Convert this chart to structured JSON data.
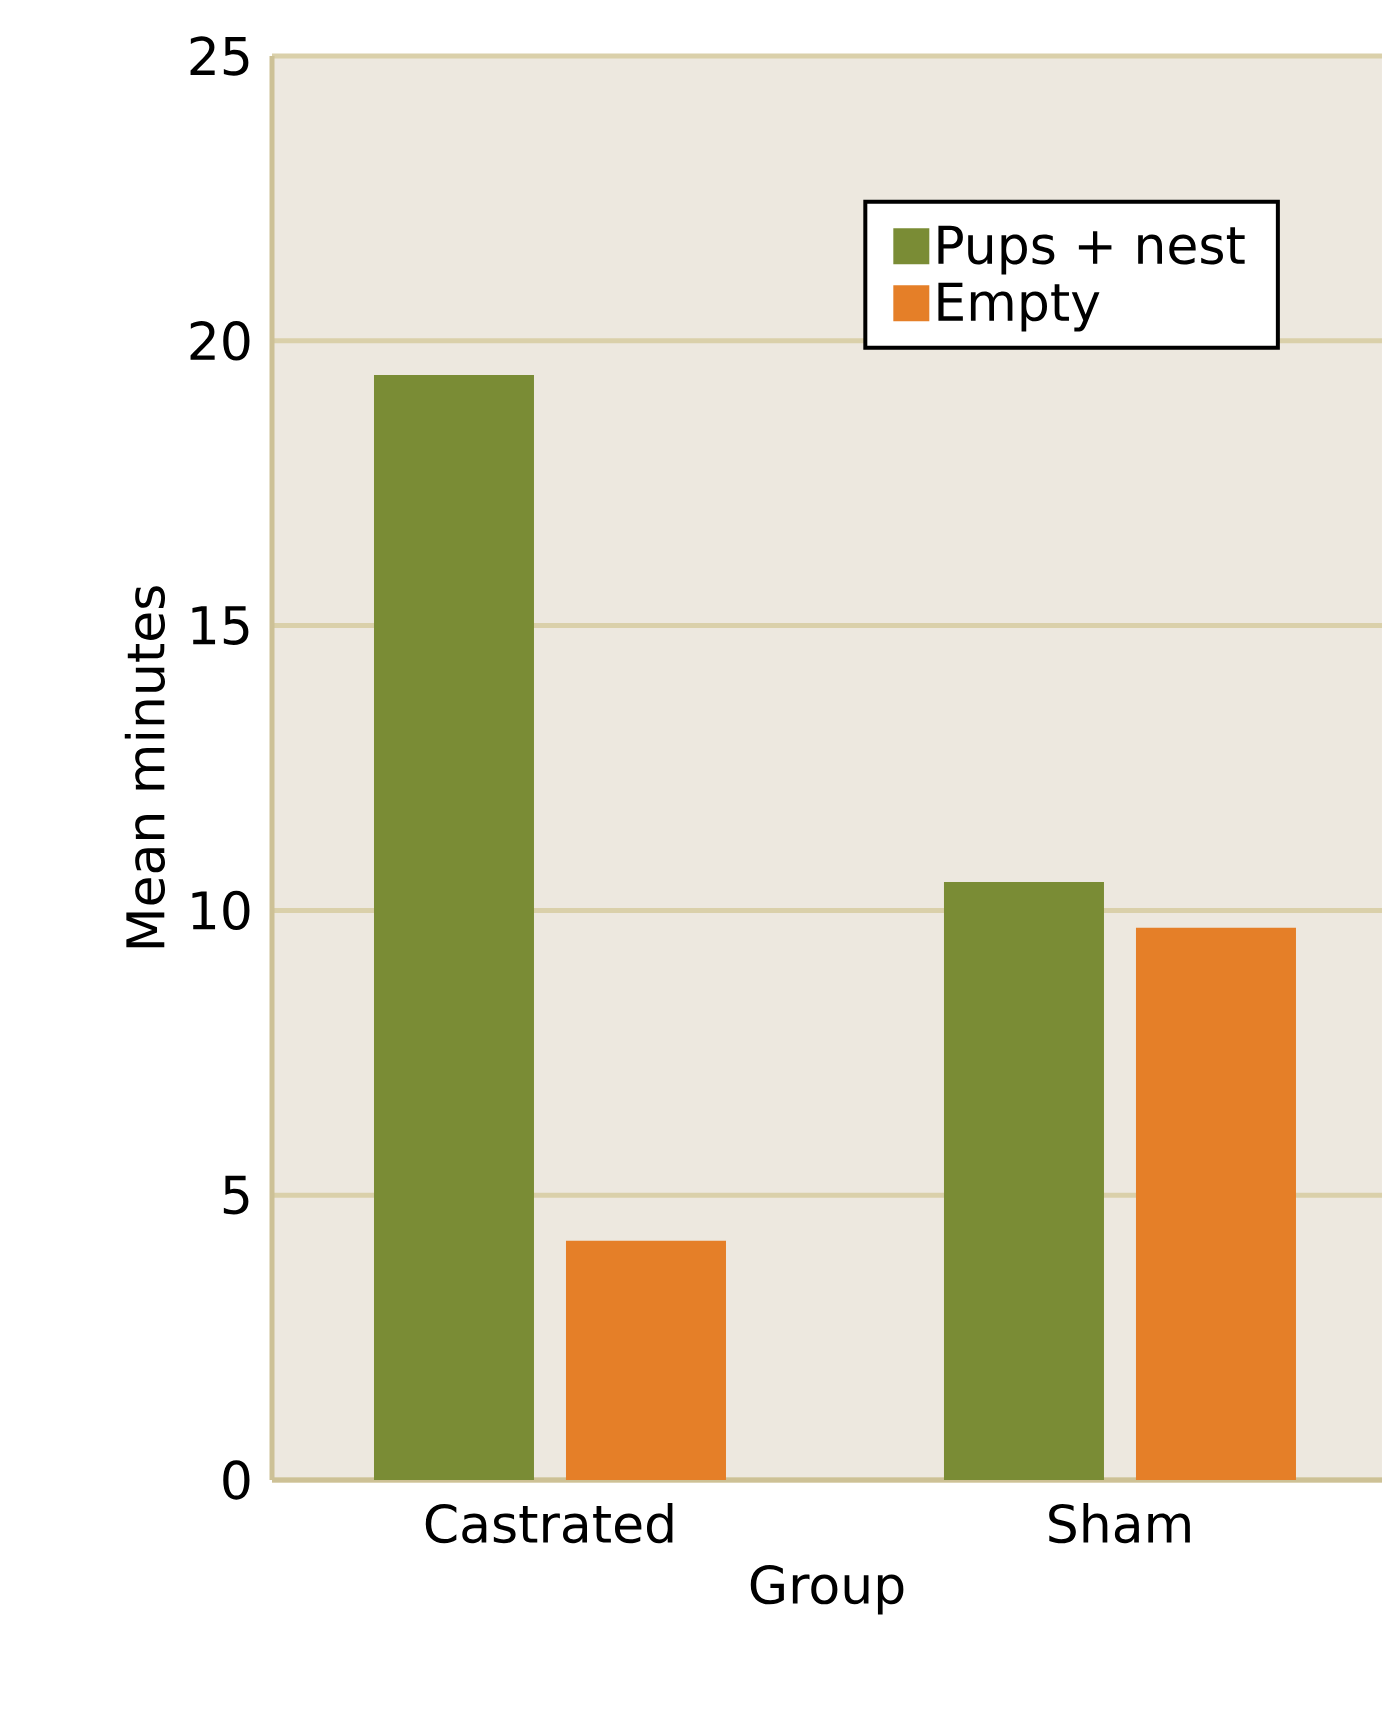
{
  "chart_data": {
    "type": "bar",
    "xlabel": "Group",
    "ylabel": "Mean minutes",
    "categories": [
      "Castrated",
      "Sham"
    ],
    "series": [
      {
        "name": "Pups + nest",
        "color": "#7a8c35",
        "values": [
          19.4,
          10.5
        ]
      },
      {
        "name": "Empty",
        "color": "#e57f28",
        "values": [
          4.2,
          9.7
        ]
      }
    ],
    "ylim": [
      0,
      25
    ],
    "yticks": [
      0,
      5,
      10,
      15,
      20,
      25
    ],
    "grid": "y",
    "legend": "top right"
  }
}
